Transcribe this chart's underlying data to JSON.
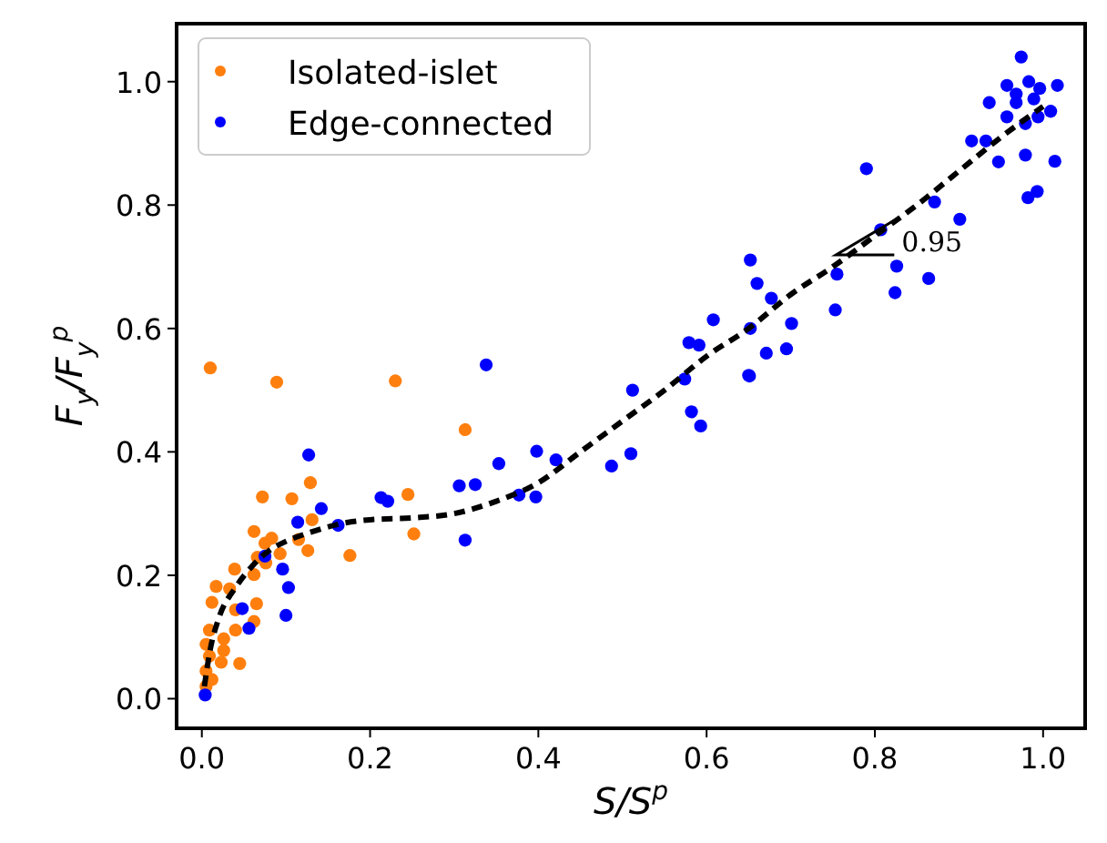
{
  "chart_data": {
    "type": "scatter",
    "xlabel": "S/S$^{p}$",
    "ylabel": "F$_{y}$/F$_{y}$$^{p}$",
    "xlim": [
      -0.03,
      1.05
    ],
    "ylim": [
      -0.048,
      1.094
    ],
    "xticks": [
      {
        "value": 0,
        "label": "0.0"
      },
      0.2,
      0.4,
      0.6,
      0.8,
      {
        "value": 1,
        "label": "1.0"
      }
    ],
    "yticks": [
      {
        "value": 0,
        "label": "0.0"
      },
      0.2,
      0.4,
      0.6,
      0.8,
      {
        "value": 1,
        "label": "1.0"
      }
    ],
    "legend": "top left",
    "marker": "circle",
    "grid": false,
    "annotations": [
      "0.95"
    ],
    "series": [
      {
        "name": "Isolated-islet",
        "color": "#ff7f0e",
        "x": [
          0.01,
          0.089,
          0.23,
          0.313,
          0.129,
          0.072,
          0.107,
          0.245,
          0.131,
          0.252,
          0.062,
          0.083,
          0.075,
          0.115,
          0.126,
          0.176,
          0.066,
          0.076,
          0.093,
          0.039,
          0.062,
          0.017,
          0.033,
          0.012,
          0.065,
          0.04,
          0.062,
          0.04,
          0.009,
          0.026,
          0.005,
          0.026,
          0.009,
          0.023,
          0.045,
          0.005,
          0.012,
          0.005
        ],
        "values": [
          0.536,
          0.513,
          0.515,
          0.436,
          0.35,
          0.327,
          0.324,
          0.331,
          0.29,
          0.267,
          0.271,
          0.26,
          0.252,
          0.258,
          0.24,
          0.232,
          0.229,
          0.22,
          0.235,
          0.21,
          0.201,
          0.182,
          0.178,
          0.156,
          0.154,
          0.144,
          0.125,
          0.111,
          0.111,
          0.097,
          0.088,
          0.078,
          0.069,
          0.059,
          0.057,
          0.045,
          0.031,
          0.02
        ]
      },
      {
        "name": "Edge-connected",
        "color": "#0000ff",
        "x": [
          0.338,
          0.127,
          0.353,
          0.306,
          0.325,
          0.213,
          0.221,
          0.142,
          0.114,
          0.162,
          0.313,
          0.075,
          0.096,
          0.103,
          0.048,
          0.1,
          0.056,
          0.004,
          0.398,
          0.421,
          0.377,
          0.397,
          0.487,
          0.51,
          0.512,
          0.574,
          0.579,
          0.591,
          0.582,
          0.593,
          0.65,
          0.608,
          0.652,
          0.66,
          0.677,
          0.652,
          0.701,
          0.671,
          0.695,
          0.651,
          0.755,
          0.753,
          0.79,
          0.807,
          0.826,
          0.824,
          0.864,
          0.871,
          0.901,
          0.947,
          0.982,
          0.993,
          0.979,
          1.014,
          0.974,
          0.957,
          0.968,
          0.983,
          0.996,
          0.989,
          0.968,
          1.017,
          1.009,
          0.994,
          0.979,
          0.936,
          0.957,
          0.915,
          0.932
        ],
        "values": [
          0.541,
          0.395,
          0.381,
          0.345,
          0.347,
          0.326,
          0.32,
          0.308,
          0.286,
          0.281,
          0.257,
          0.231,
          0.21,
          0.18,
          0.146,
          0.135,
          0.114,
          0.006,
          0.401,
          0.387,
          0.33,
          0.327,
          0.377,
          0.397,
          0.5,
          0.518,
          0.577,
          0.573,
          0.465,
          0.442,
          0.524,
          0.614,
          0.711,
          0.673,
          0.649,
          0.6,
          0.608,
          0.56,
          0.567,
          0.523,
          0.688,
          0.63,
          0.859,
          0.76,
          0.701,
          0.658,
          0.681,
          0.805,
          0.777,
          0.87,
          0.812,
          0.822,
          0.881,
          0.871,
          1.04,
          0.994,
          0.98,
          1.0,
          0.989,
          0.972,
          0.966,
          0.994,
          0.952,
          0.943,
          0.932,
          0.966,
          0.943,
          0.904,
          0.904
        ]
      },
      {
        "type": "line",
        "color": "#000000",
        "line_style": "dashed",
        "marker": "none",
        "x": [
          0.003,
          0.01,
          0.02,
          0.04,
          0.06,
          0.08,
          0.1,
          0.13,
          0.16,
          0.2,
          0.25,
          0.3,
          0.35,
          0.4,
          0.45,
          0.5,
          0.55,
          0.6,
          0.65,
          0.7,
          0.75,
          0.8,
          0.85,
          0.9,
          0.95,
          1.0
        ],
        "values": [
          0.02,
          0.08,
          0.13,
          0.18,
          0.215,
          0.24,
          0.255,
          0.27,
          0.282,
          0.29,
          0.293,
          0.3,
          0.32,
          0.35,
          0.4,
          0.45,
          0.5,
          0.555,
          0.6,
          0.655,
          0.7,
          0.75,
          0.8,
          0.855,
          0.91,
          0.96
        ]
      }
    ]
  }
}
